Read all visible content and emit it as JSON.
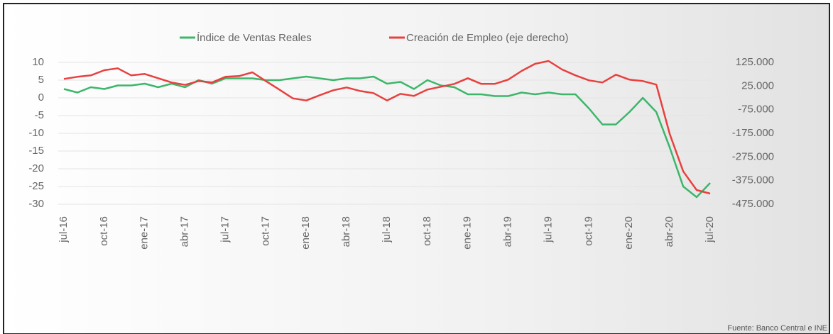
{
  "chart_data": {
    "type": "line",
    "legend_position": "top",
    "source": "Fuente: Banco Central e INE",
    "categories": [
      "jul-16",
      null,
      null,
      "oct-16",
      null,
      null,
      "ene-17",
      null,
      null,
      "abr-17",
      null,
      null,
      "jul-17",
      null,
      null,
      "oct-17",
      null,
      null,
      "ene-18",
      null,
      null,
      "abr-18",
      null,
      null,
      "jul-18",
      null,
      null,
      "oct-18",
      null,
      null,
      "ene-19",
      null,
      null,
      "abr-19",
      null,
      null,
      "jul-19",
      null,
      null,
      "oct-19",
      null,
      null,
      "ene-20",
      null,
      null,
      "abr-20",
      null,
      null,
      "jul-20"
    ],
    "series": [
      {
        "name": "Índice de Ventas Reales",
        "color": "#3cb66a",
        "axis": "y",
        "values": [
          2.5,
          1.5,
          3,
          2.5,
          3.5,
          3.5,
          4,
          3,
          4,
          3,
          5,
          4,
          5.5,
          5.5,
          5.5,
          5,
          5,
          5.5,
          6,
          5.5,
          5,
          5.5,
          5.5,
          6,
          4,
          4.5,
          2.5,
          5,
          3.5,
          3,
          1,
          1,
          0.5,
          0.5,
          1.5,
          1,
          1.5,
          1,
          1,
          -3,
          -7.5,
          -7.5,
          -4,
          0,
          -4,
          -14,
          -25,
          -28,
          -24
        ]
      },
      {
        "name": "Creación de Empleo (eje derecho)",
        "color": "#e8403f",
        "axis": "y2",
        "values": [
          55000,
          64000,
          70000,
          92000,
          100000,
          70000,
          76000,
          58000,
          40000,
          30000,
          46000,
          40000,
          64000,
          67000,
          83000,
          46000,
          10000,
          -27000,
          -36000,
          -14000,
          7000,
          19000,
          4000,
          -5000,
          -36000,
          -8000,
          -17000,
          10000,
          22000,
          34000,
          58000,
          34000,
          34000,
          52000,
          89000,
          119000,
          131000,
          95000,
          70000,
          49000,
          40000,
          73000,
          52000,
          46000,
          31000,
          -178000,
          -336000,
          -415000,
          -430000
        ]
      }
    ],
    "ylim": [
      -30,
      10
    ],
    "yticks": [
      10,
      5,
      0,
      -5,
      -10,
      -15,
      -20,
      -25,
      -30
    ],
    "y2lim": [
      -475000,
      125000
    ],
    "y2ticks": [
      {
        "value": 125000,
        "label": "125.000"
      },
      {
        "value": 25000,
        "label": "25.000"
      },
      {
        "value": -75000,
        "label": "-75.000"
      },
      {
        "value": -175000,
        "label": "-175.000"
      },
      {
        "value": -275000,
        "label": "-275.000"
      },
      {
        "value": -375000,
        "label": "-375.000"
      },
      {
        "value": -475000,
        "label": "-475.000"
      }
    ]
  }
}
